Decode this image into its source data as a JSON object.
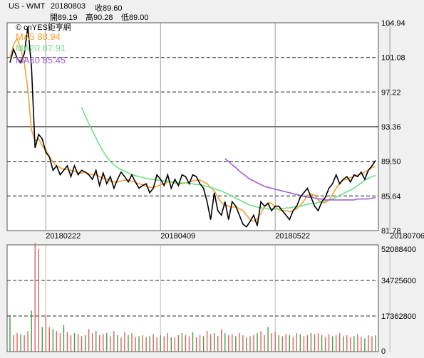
{
  "header": {
    "symbol": "US - WMT",
    "date": "20180803",
    "close_label": "收89.60",
    "open_label": "開89.19",
    "high_label": "高90.28",
    "low_label": "低89.00"
  },
  "legend": {
    "copyright": "© cnYES鉅亨網",
    "ma5": "MA5 88.94",
    "ma20": "MA20 87.91",
    "ma60": "MA60 85.45"
  },
  "colors": {
    "price": "#000000",
    "ma5": "#f5a030",
    "ma20": "#6ee08a",
    "ma60": "#a060d8",
    "volume": "#e06060",
    "grid": "#555555",
    "plot_bg": "#ffffff"
  },
  "chart_data": [
    {
      "type": "line",
      "name": "price",
      "ylim": [
        81.78,
        104.94
      ],
      "y_ticks": [
        "104.94",
        "101.08",
        "97.22",
        "93.36",
        "89.50",
        "85.64",
        "81.78"
      ],
      "x_ticks": [
        "20180222",
        "20180409",
        "20180522",
        "20180706"
      ],
      "series": [
        {
          "name": "MA5",
          "values": [
            101.0,
            102.5,
            103.2,
            102.0,
            100.5,
            97.5,
            93.0,
            91.8,
            92.0,
            91.2,
            90.8,
            90.0,
            89.4,
            89.0,
            88.8,
            88.6,
            88.6,
            88.5,
            88.4,
            88.2,
            88.2,
            88.3,
            88.1,
            88.0,
            88.0,
            87.8,
            87.6,
            87.5,
            87.3,
            87.2,
            87.2,
            87.3,
            87.4,
            87.4,
            87.3,
            87.2,
            87.0,
            86.9,
            86.7,
            86.6,
            86.6,
            86.7,
            86.9,
            87.0,
            87.2,
            87.2,
            87.1,
            87.0,
            87.0,
            87.1,
            87.2,
            87.3,
            87.4,
            87.4,
            87.2,
            87.0,
            86.6,
            86.2,
            85.5,
            84.9,
            84.6,
            84.5,
            84.4,
            84.4,
            84.2,
            84.0,
            83.5,
            83.0,
            82.8,
            83.1,
            83.7,
            84.4,
            84.9,
            84.8,
            84.4,
            84.1,
            84.0,
            84.0,
            83.9,
            84.0,
            84.2,
            84.6,
            85.1,
            85.7,
            85.9,
            85.7,
            85.2,
            84.9,
            84.9,
            85.2,
            85.8,
            86.5,
            87.0,
            87.4,
            87.5,
            87.7,
            87.8,
            88.0,
            88.1,
            88.3,
            88.5,
            88.8,
            88.94
          ]
        },
        {
          "name": "MA20",
          "values": [
            null,
            null,
            null,
            null,
            null,
            null,
            null,
            null,
            null,
            null,
            null,
            null,
            null,
            null,
            null,
            null,
            null,
            null,
            null,
            null,
            95.5,
            94.6,
            93.7,
            92.9,
            92.1,
            91.3,
            90.6,
            90.0,
            89.5,
            89.1,
            88.8,
            88.6,
            88.4,
            88.2,
            88.0,
            87.9,
            87.8,
            87.7,
            87.6,
            87.5,
            87.5,
            87.4,
            87.4,
            87.3,
            87.3,
            87.2,
            87.2,
            87.1,
            87.1,
            87.1,
            87.0,
            87.0,
            86.9,
            86.9,
            86.8,
            86.7,
            86.6,
            86.5,
            86.3,
            86.2,
            86.0,
            85.8,
            85.6,
            85.4,
            85.2,
            85.0,
            84.8,
            84.6,
            84.5,
            84.4,
            84.3,
            84.3,
            84.2,
            84.2,
            84.2,
            84.2,
            84.2,
            84.3,
            84.3,
            84.4,
            84.5,
            84.5,
            84.6,
            84.7,
            84.8,
            84.8,
            84.9,
            85.0,
            85.1,
            85.2,
            85.3,
            85.5,
            85.7,
            85.9,
            86.1,
            86.3,
            86.5,
            86.8,
            87.1,
            87.4,
            87.6,
            87.8,
            87.91
          ]
        },
        {
          "name": "MA60",
          "values": [
            null,
            null,
            null,
            null,
            null,
            null,
            null,
            null,
            null,
            null,
            null,
            null,
            null,
            null,
            null,
            null,
            null,
            null,
            null,
            null,
            null,
            null,
            null,
            null,
            null,
            null,
            null,
            null,
            null,
            null,
            null,
            null,
            null,
            null,
            null,
            null,
            null,
            null,
            null,
            null,
            null,
            null,
            null,
            null,
            null,
            null,
            null,
            null,
            null,
            null,
            null,
            null,
            null,
            null,
            null,
            null,
            null,
            null,
            null,
            null,
            89.8,
            89.5,
            89.1,
            88.8,
            88.4,
            88.1,
            87.8,
            87.5,
            87.3,
            87.1,
            86.9,
            86.7,
            86.6,
            86.5,
            86.4,
            86.3,
            86.2,
            86.1,
            86.0,
            85.9,
            85.8,
            85.7,
            85.6,
            85.5,
            85.5,
            85.4,
            85.3,
            85.3,
            85.2,
            85.2,
            85.2,
            85.2,
            85.2,
            85.2,
            85.2,
            85.2,
            85.2,
            85.3,
            85.3,
            85.3,
            85.3,
            85.4,
            85.45
          ]
        },
        {
          "name": "Close",
          "values": [
            100.5,
            102.0,
            101.0,
            100.5,
            101.5,
            104.5,
            100.0,
            91.0,
            92.5,
            92.0,
            90.5,
            90.0,
            88.5,
            89.0,
            88.0,
            88.5,
            89.0,
            87.8,
            89.0,
            88.0,
            88.5,
            88.3,
            88.0,
            87.5,
            88.5,
            86.8,
            88.2,
            87.0,
            87.8,
            86.5,
            87.5,
            88.3,
            87.8,
            87.2,
            88.0,
            87.2,
            86.5,
            86.8,
            87.0,
            86.0,
            86.5,
            88.0,
            87.5,
            86.8,
            88.0,
            86.5,
            87.5,
            86.8,
            88.0,
            87.8,
            87.0,
            88.0,
            87.8,
            87.0,
            86.5,
            85.0,
            83.0,
            86.0,
            84.0,
            83.5,
            85.0,
            83.0,
            85.0,
            84.5,
            83.5,
            82.5,
            82.2,
            82.8,
            83.5,
            82.3,
            85.0,
            84.5,
            84.8,
            84.0,
            84.5,
            84.5,
            84.0,
            83.5,
            83.0,
            84.0,
            84.5,
            85.5,
            86.0,
            86.5,
            85.5,
            84.5,
            84.0,
            85.0,
            85.5,
            86.5,
            87.0,
            88.0,
            87.0,
            87.5,
            87.8,
            87.2,
            88.0,
            87.8,
            88.3,
            87.5,
            88.5,
            89.0,
            89.6
          ]
        }
      ]
    },
    {
      "type": "bar",
      "name": "volume",
      "ylim": [
        0,
        52088400
      ],
      "y_ticks": [
        "52088400",
        "34725600",
        "17362800",
        "0"
      ],
      "values": [
        18000000,
        8000000,
        9000000,
        8500000,
        8000000,
        10000000,
        20000000,
        53000000,
        50000000,
        12000000,
        18000000,
        12000000,
        11000000,
        10000000,
        9000000,
        13000000,
        9500000,
        8000000,
        9000000,
        8500000,
        7500000,
        8000000,
        11000000,
        9000000,
        10000000,
        8000000,
        8500000,
        9000000,
        7500000,
        10000000,
        8000000,
        7000000,
        9500000,
        8000000,
        9000000,
        7000000,
        7500000,
        8000000,
        7000000,
        7500000,
        8500000,
        7000000,
        8000000,
        7500000,
        9000000,
        7000000,
        7000000,
        8000000,
        9000000,
        8000000,
        7500000,
        9500000,
        7000000,
        8000000,
        7500000,
        10000000,
        8500000,
        9000000,
        7500000,
        11000000,
        9000000,
        8000000,
        8500000,
        7500000,
        9000000,
        8000000,
        7000000,
        7500000,
        8000000,
        9000000,
        10000000,
        8000000,
        12000000,
        9000000,
        9500000,
        8000000,
        7500000,
        8500000,
        8000000,
        7000000,
        9000000,
        8500000,
        7500000,
        8000000,
        9000000,
        8500000,
        9000000,
        8000000,
        7000000,
        8500000,
        7500000,
        8000000,
        9000000,
        7500000,
        8000000,
        7000000,
        7500000,
        8500000,
        7000000,
        6500000,
        8000000,
        7500000,
        8000000
      ]
    }
  ]
}
